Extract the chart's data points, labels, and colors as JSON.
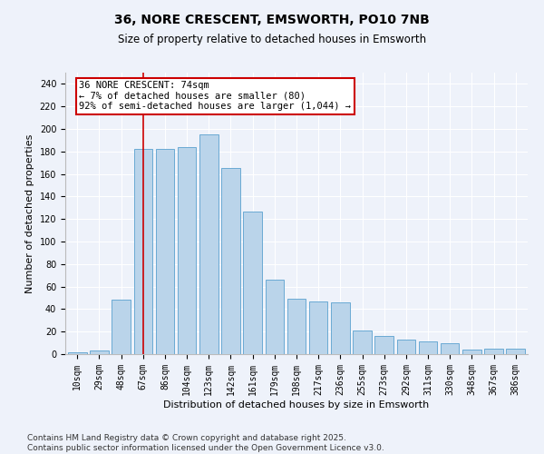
{
  "title": "36, NORE CRESCENT, EMSWORTH, PO10 7NB",
  "subtitle": "Size of property relative to detached houses in Emsworth",
  "xlabel": "Distribution of detached houses by size in Emsworth",
  "ylabel": "Number of detached properties",
  "categories": [
    "10sqm",
    "29sqm",
    "48sqm",
    "67sqm",
    "86sqm",
    "104sqm",
    "123sqm",
    "142sqm",
    "161sqm",
    "179sqm",
    "198sqm",
    "217sqm",
    "236sqm",
    "255sqm",
    "273sqm",
    "292sqm",
    "311sqm",
    "330sqm",
    "348sqm",
    "367sqm",
    "386sqm"
  ],
  "values": [
    2,
    3,
    48,
    182,
    182,
    184,
    195,
    165,
    127,
    66,
    49,
    47,
    46,
    21,
    16,
    13,
    11,
    10,
    4,
    5,
    5
  ],
  "bar_color": "#bad4ea",
  "bar_edge_color": "#6aaad4",
  "bar_edge_width": 0.7,
  "vline_index": 3,
  "vline_color": "#cc0000",
  "annotation_text": "36 NORE CRESCENT: 74sqm\n← 7% of detached houses are smaller (80)\n92% of semi-detached houses are larger (1,044) →",
  "annotation_box_color": "#ffffff",
  "annotation_border_color": "#cc0000",
  "ylim": [
    0,
    250
  ],
  "yticks": [
    0,
    20,
    40,
    60,
    80,
    100,
    120,
    140,
    160,
    180,
    200,
    220,
    240
  ],
  "background_color": "#eef2fa",
  "grid_color": "#ffffff",
  "footer_line1": "Contains HM Land Registry data © Crown copyright and database right 2025.",
  "footer_line2": "Contains public sector information licensed under the Open Government Licence v3.0.",
  "title_fontsize": 10,
  "subtitle_fontsize": 8.5,
  "xlabel_fontsize": 8,
  "ylabel_fontsize": 8,
  "tick_fontsize": 7,
  "annotation_fontsize": 7.5,
  "footer_fontsize": 6.5
}
